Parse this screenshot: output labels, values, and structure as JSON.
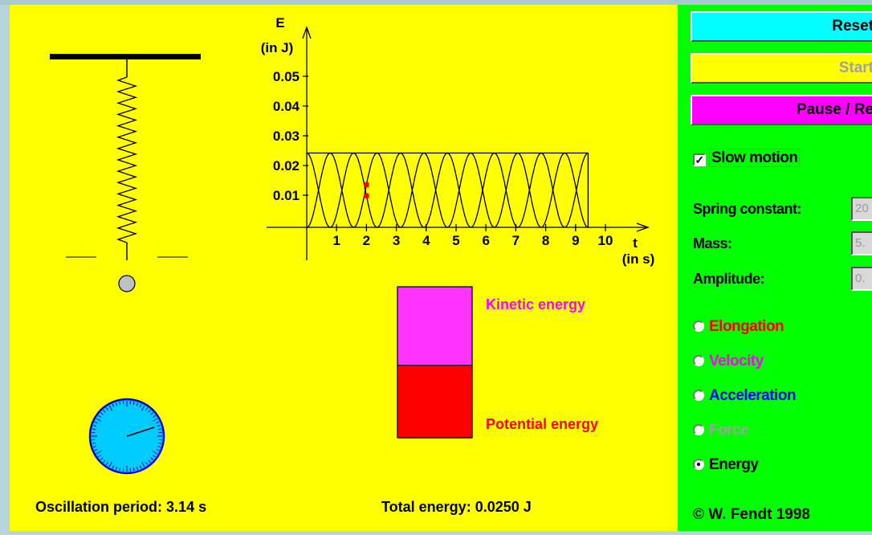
{
  "simulation": {
    "graph": {
      "y_axis_label": "E",
      "y_axis_unit": "(in J)",
      "y_ticks": [
        "0.05",
        "0.04",
        "0.03",
        "0.02",
        "0.01"
      ],
      "x_axis_label": "t",
      "x_axis_unit": "(in s)",
      "x_ticks": [
        "1",
        "2",
        "3",
        "4",
        "5",
        "6",
        "7",
        "8",
        "9",
        "10"
      ],
      "total_energy_J": 0.025,
      "current_time_s": 2.0,
      "curve_end_time_s": 9.42
    },
    "energy_bar": {
      "kinetic_label": "Kinetic energy",
      "potential_label": "Potential energy",
      "kinetic_fraction": 0.52,
      "kinetic_color": "#ff33ff",
      "potential_color": "#ff0000"
    },
    "clock": {
      "hand_fraction": 0.2
    },
    "oscillation_period_label": "Oscillation period:",
    "oscillation_period_value": "3.14 s",
    "total_energy_label": "Total energy:",
    "total_energy_value": "0.0250 J"
  },
  "panel": {
    "buttons": {
      "reset": "Reset",
      "start": "Start",
      "pause": "Pause / Re"
    },
    "slow_motion": {
      "label": "Slow motion",
      "checked": true
    },
    "params": {
      "spring_constant_label": "Spring constant:",
      "spring_constant_value": "20",
      "mass_label": "Mass:",
      "mass_value": "5.",
      "amplitude_label": "Amplitude:",
      "amplitude_value": "0."
    },
    "radios": [
      {
        "label": "Elongation",
        "color": "#ff0000",
        "selected": false
      },
      {
        "label": "Velocity",
        "color": "#ff00ff",
        "selected": false
      },
      {
        "label": "Acceleration",
        "color": "#0000ff",
        "selected": false
      },
      {
        "label": "Force",
        "color": "#a0a0a0",
        "selected": false
      },
      {
        "label": "Energy",
        "color": "#000000",
        "selected": true
      }
    ],
    "copyright": "© W. Fendt 1998"
  },
  "colors": {
    "sim_background": "#ffff00",
    "panel_background": "#00ff00"
  }
}
